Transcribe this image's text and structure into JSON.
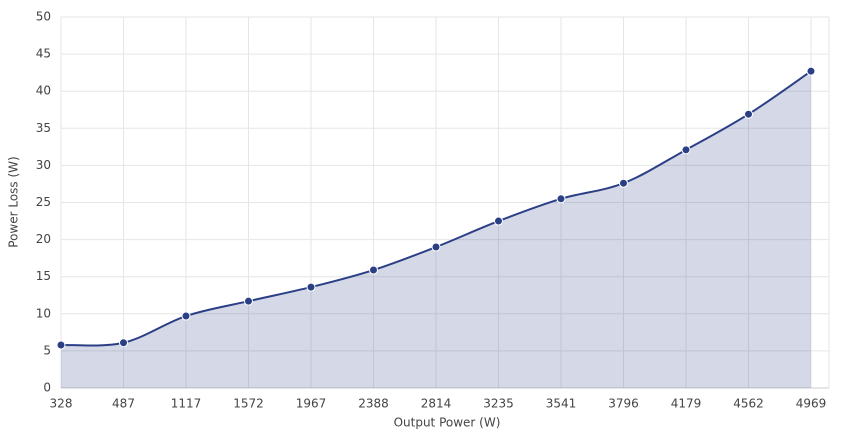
{
  "chart_data": {
    "type": "area",
    "x_label": "Output Power (W)",
    "y_label": "Power Loss (W)",
    "categories": [
      "328",
      "487",
      "1117",
      "1572",
      "1967",
      "2388",
      "2814",
      "3235",
      "3541",
      "3796",
      "4179",
      "4562",
      "4969"
    ],
    "values": [
      5.8,
      6.1,
      9.7,
      11.7,
      13.6,
      15.9,
      19.0,
      22.5,
      25.5,
      27.6,
      32.1,
      36.9,
      42.7
    ],
    "color": "#2b3f86",
    "ylim": [
      0,
      50
    ],
    "yticks": [
      0,
      5,
      10,
      15,
      20,
      25,
      30,
      35,
      40,
      45,
      50
    ],
    "grid": true
  }
}
